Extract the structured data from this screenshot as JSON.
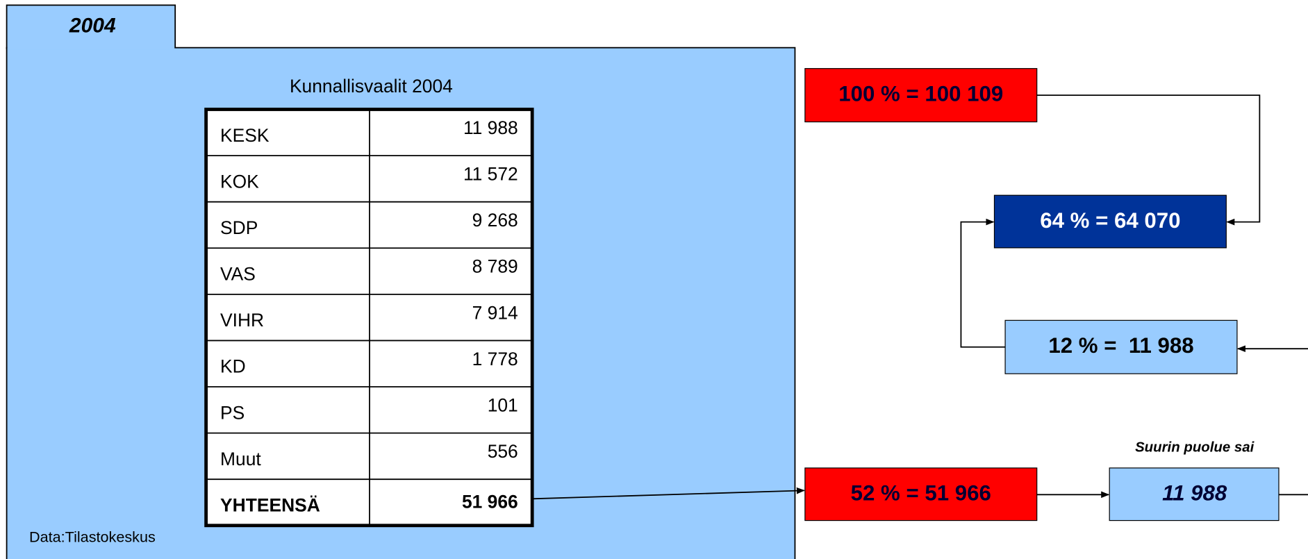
{
  "tab": {
    "label": "2004"
  },
  "table": {
    "title": "Kunnallisvaalit 2004",
    "rows": [
      [
        "KESK",
        "11 988"
      ],
      [
        "KOK",
        "11 572"
      ],
      [
        "SDP",
        "9 268"
      ],
      [
        "VAS",
        "8 789"
      ],
      [
        "VIHR",
        "7 914"
      ],
      [
        "KD",
        "1 778"
      ],
      [
        "PS",
        "101"
      ],
      [
        "Muut",
        "556"
      ],
      [
        "YHTEENSÄ",
        "51 966"
      ]
    ]
  },
  "source": "Data:Tilastokeskus",
  "boxes": [
    {
      "label": "100 % = 100 109"
    },
    {
      "label": "64 % = 64 070"
    },
    {
      "label": "12 % =  11 988"
    },
    {
      "label": "52 % = 51 966"
    },
    {
      "label": "11 988"
    }
  ],
  "annotation": "Suurin puolue sai"
}
